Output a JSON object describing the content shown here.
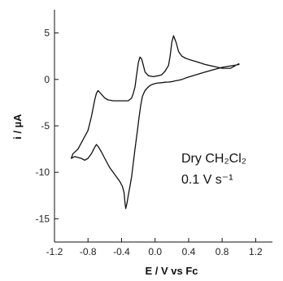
{
  "chart_data": {
    "type": "line",
    "title": "",
    "xlabel": "E / V vs Fc",
    "ylabel": "i / µA",
    "xlim": [
      -1.2,
      1.4
    ],
    "ylim": [
      -17.5,
      7.5
    ],
    "xticks": [
      -1.2,
      -0.8,
      -0.4,
      0.0,
      0.4,
      0.8,
      1.2
    ],
    "yticks": [
      5,
      0,
      -5,
      -10,
      -15
    ],
    "xtick_labels": [
      "-1.2",
      "-0.8",
      "-0.4",
      "0.0",
      "0.4",
      "0.8",
      "1.2"
    ],
    "ytick_labels": [
      "5",
      "0",
      "-5",
      "-10",
      "-15"
    ],
    "grid": false,
    "annotations": [
      {
        "text": "Dry CH₂Cl₂"
      },
      {
        "text": "0.1 V s⁻¹"
      }
    ],
    "series": [
      {
        "x": [
          1.0,
          0.8,
          0.6,
          0.45,
          0.38,
          0.32,
          0.28,
          0.24,
          0.22,
          0.19,
          0.16,
          0.12,
          0.08,
          0.02,
          -0.02,
          -0.05,
          -0.08,
          -0.12,
          -0.15,
          -0.17,
          -0.19,
          -0.21,
          -0.24,
          -0.26,
          -0.28,
          -0.3,
          -0.32,
          -0.335,
          -0.35,
          -0.36,
          -0.37,
          -0.39,
          -0.42,
          -0.46,
          -0.5,
          -0.54,
          -0.6,
          -0.64,
          -0.68,
          -0.7,
          -0.72,
          -0.76,
          -0.8,
          -0.84,
          -0.88,
          -0.92,
          -0.96,
          -1.0,
          -0.98,
          -0.92,
          -0.86,
          -0.8,
          -0.76,
          -0.72,
          -0.7,
          -0.68,
          -0.64,
          -0.6,
          -0.56,
          -0.5,
          -0.44,
          -0.4,
          -0.36,
          -0.32,
          -0.28,
          -0.26,
          -0.24,
          -0.22,
          -0.2,
          -0.18,
          -0.16,
          -0.14,
          -0.12,
          -0.08,
          -0.02,
          0.04,
          0.08,
          0.12,
          0.16,
          0.18,
          0.2,
          0.22,
          0.25,
          0.28,
          0.32,
          0.36,
          0.42,
          0.5,
          0.6,
          0.7,
          0.8,
          0.9,
          1.0
        ],
        "y": [
          1.6,
          1.3,
          0.8,
          0.4,
          0.2,
          0.0,
          -0.1,
          -0.15,
          -0.2,
          -0.25,
          -0.28,
          -0.3,
          -0.35,
          -0.4,
          -0.5,
          -0.6,
          -0.8,
          -1.2,
          -1.8,
          -2.7,
          -4.0,
          -5.5,
          -7.5,
          -9.0,
          -10.5,
          -11.5,
          -12.5,
          -13.3,
          -13.9,
          -13.2,
          -12.2,
          -11.5,
          -11.0,
          -10.5,
          -10.0,
          -9.5,
          -8.5,
          -7.8,
          -7.2,
          -7.0,
          -7.3,
          -8.0,
          -8.5,
          -8.7,
          -8.5,
          -8.4,
          -8.3,
          -8.5,
          -8.0,
          -7.5,
          -6.5,
          -5.5,
          -4.0,
          -2.2,
          -1.5,
          -1.2,
          -1.6,
          -2.0,
          -2.2,
          -2.3,
          -2.3,
          -2.3,
          -2.3,
          -2.3,
          -2.0,
          -1.5,
          -0.8,
          0.5,
          1.8,
          2.4,
          2.2,
          1.5,
          0.8,
          0.4,
          0.3,
          0.4,
          0.5,
          0.9,
          1.5,
          2.5,
          4.0,
          4.7,
          4.0,
          3.0,
          2.5,
          2.3,
          2.1,
          1.9,
          1.6,
          1.4,
          1.2,
          1.2,
          1.7
        ]
      }
    ]
  }
}
